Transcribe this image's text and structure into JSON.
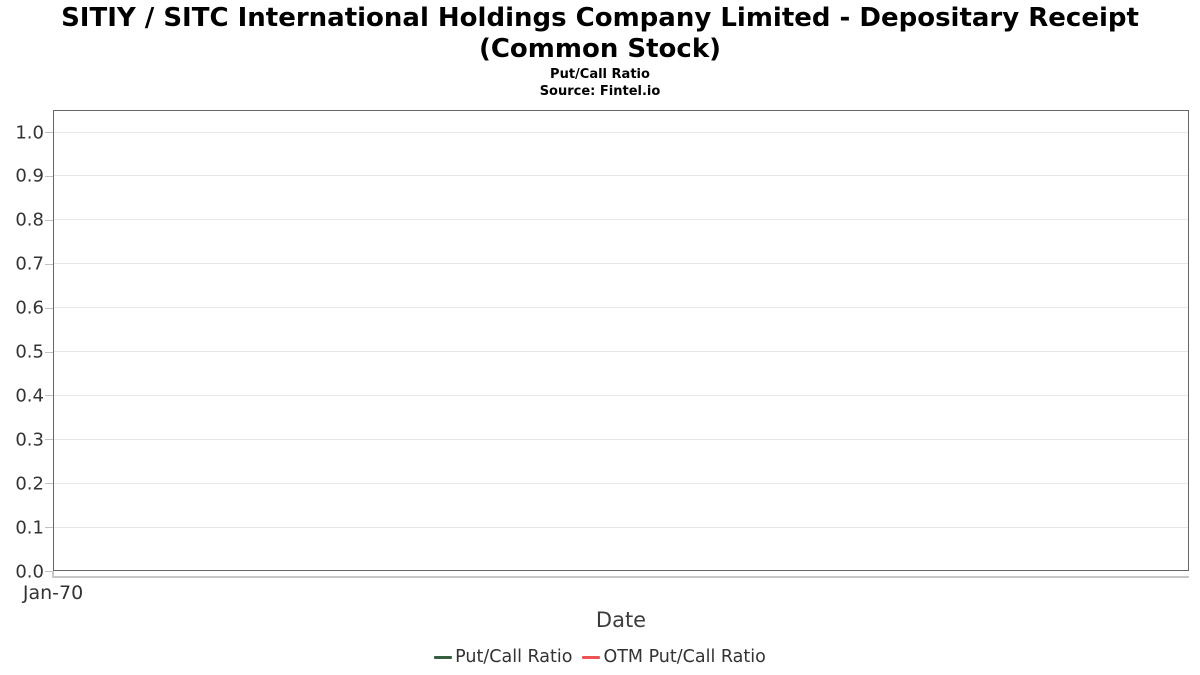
{
  "header": {
    "title": "SITIY / SITC International Holdings Company Limited - Depositary Receipt (Common Stock)",
    "subtitle": "Put/Call Ratio",
    "source": "Source: Fintel.io"
  },
  "chart_data": {
    "type": "line",
    "title": "SITIY / SITC International Holdings Company Limited - Depositary Receipt (Common Stock)",
    "subtitle": "Put/Call Ratio",
    "source": "Source: Fintel.io",
    "xlabel": "Date",
    "ylabel": "",
    "x_ticks": [
      "Jan-70"
    ],
    "y_ticks": [
      "0.0",
      "0.1",
      "0.2",
      "0.3",
      "0.4",
      "0.5",
      "0.6",
      "0.7",
      "0.8",
      "0.9",
      "1.0"
    ],
    "ylim": [
      0.0,
      1.05
    ],
    "grid": true,
    "legend_position": "bottom",
    "series": [
      {
        "name": "Put/Call Ratio",
        "color": "#355f41",
        "x": [],
        "values": []
      },
      {
        "name": "OTM Put/Call Ratio",
        "color": "#ef5350",
        "x": [],
        "values": []
      }
    ],
    "colors": {
      "plot_border": "#666666",
      "gridline": "#e7e7e7",
      "tick": "#c2c2c2",
      "text": "#333333"
    }
  }
}
